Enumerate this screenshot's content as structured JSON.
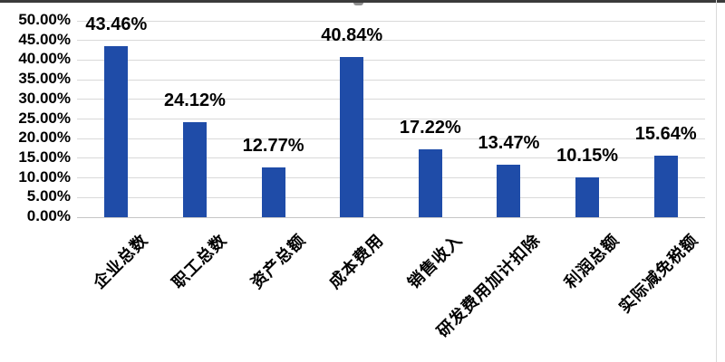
{
  "chart": {
    "colors": {
      "bar": "#1F4CA8",
      "gridline": "#D9D9D9",
      "axis_line": "#C6C6C6",
      "text": "#000000",
      "top_strip": "#3B3B3B",
      "title_remnant": "#8F8F8F",
      "frame_edge": "#DADADA",
      "background": "#FFFFFF"
    }
  },
  "chart_data": {
    "type": "bar",
    "title": "",
    "categories": [
      "企业总数",
      "职工总数",
      "资产总额",
      "成本费用",
      "销售收入",
      "研发费用加计扣除",
      "利润总额",
      "实际减免税额"
    ],
    "values": [
      43.46,
      24.12,
      12.77,
      40.84,
      17.22,
      13.47,
      10.15,
      15.64
    ],
    "data_labels": [
      "43.46%",
      "24.12%",
      "12.77%",
      "40.84%",
      "17.22%",
      "13.47%",
      "10.15%",
      "15.64%"
    ],
    "y_ticks": [
      "50.00%",
      "45.00%",
      "40.00%",
      "35.00%",
      "30.00%",
      "25.00%",
      "20.00%",
      "15.00%",
      "10.00%",
      "5.00%",
      "0.00%"
    ],
    "ylim": [
      0,
      50
    ],
    "y_tick_step": 5,
    "grid": true,
    "legend": "none",
    "xlabel": "",
    "ylabel": "",
    "data_label_position": "above-bar",
    "category_label_rotation_deg": -45
  }
}
